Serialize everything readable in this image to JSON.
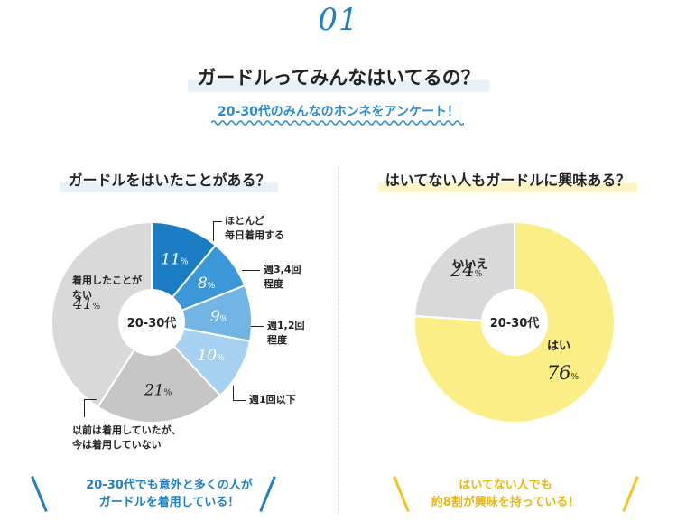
{
  "header": {
    "number": "01",
    "title": "ガードルってみんなはいてるの？",
    "subtitle": "20-30代のみんなのホンネをアンケート！"
  },
  "colors": {
    "accent_blue": "#1f7fc4",
    "accent_yellow": "#f2c321",
    "slice_grey": "#d5d5d5",
    "slice_dark_grey": "#c6c6c6",
    "yes_yellow": "#fbee86"
  },
  "chart_data": [
    {
      "type": "pie",
      "title": "ガードルをはいたことがある？",
      "center_label": "20-30代",
      "slices": [
        {
          "label": "ほとんど毎日着用する",
          "value": 11,
          "color": "#1a7cc3"
        },
        {
          "label": "週3,4回程度",
          "value": 8,
          "color": "#3b97d7"
        },
        {
          "label": "週1,2回程度",
          "value": 9,
          "color": "#72b5e4"
        },
        {
          "label": "週1回以下",
          "value": 10,
          "color": "#a6d1f0"
        },
        {
          "label": "以前は着用していたが、今は着用していない",
          "value": 21,
          "color": "#c6c6c6"
        },
        {
          "label": "着用したことがない",
          "value": 41,
          "color": "#d9d9d9"
        }
      ]
    },
    {
      "type": "pie",
      "title": "はいてない人もガードルに興味ある？",
      "center_label": "20-30代",
      "slices": [
        {
          "label": "はい",
          "value": 76,
          "color": "#fbee86"
        },
        {
          "label": "いいえ",
          "value": 24,
          "color": "#d9d9d9"
        }
      ]
    }
  ],
  "labels": {
    "percent_unit": "%",
    "c1_s1_line1": "ほとんど",
    "c1_s1_line2": "毎日着用する",
    "c1_s2_line1": "週3,4回",
    "c1_s2_line2": "程度",
    "c1_s3_line1": "週1,2回",
    "c1_s3_line2": "程度",
    "c1_s4_line1": "週1回以下",
    "c1_s5_line1": "以前は着用していたが、",
    "c1_s5_line2": "今は着用していない",
    "c1_s6_line1": "着用したことが",
    "c1_s6_line2": "ない"
  },
  "conclusions": {
    "left_line1": "20-30代でも意外と多くの人が",
    "left_line2": "ガードルを着用している！",
    "right_line1": "はいてない人でも",
    "right_line2": "約8割が興味を持っている！"
  }
}
